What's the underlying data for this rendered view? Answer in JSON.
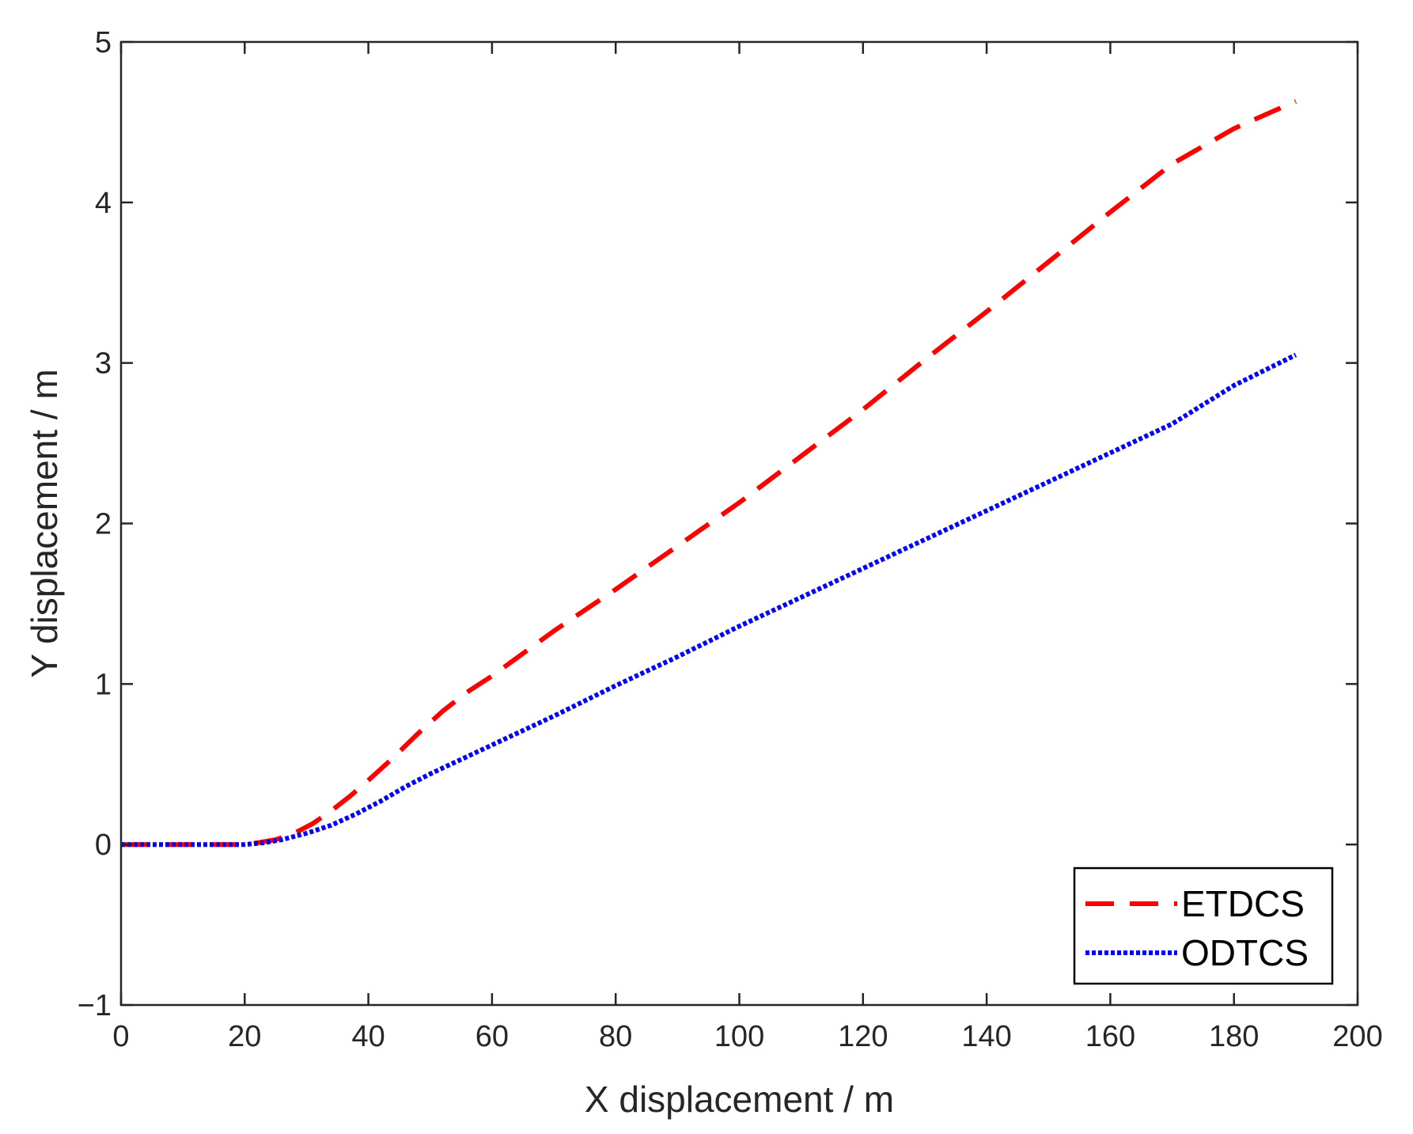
{
  "chart_data": {
    "type": "line",
    "xlabel": "X displacement / m",
    "ylabel": "Y displacement / m",
    "xlim": [
      0,
      200
    ],
    "ylim": [
      -1,
      5
    ],
    "xticks": [
      "0",
      "20",
      "40",
      "60",
      "80",
      "100",
      "120",
      "140",
      "160",
      "180",
      "200"
    ],
    "yticks": [
      "−1",
      "0",
      "1",
      "2",
      "3",
      "4",
      "5"
    ],
    "grid": false,
    "legend_position": "bottom-right",
    "series": [
      {
        "name": "ETDCS",
        "color": "#ff0000",
        "style": "dashed",
        "x": [
          0,
          10,
          20,
          22,
          25,
          28,
          31,
          34,
          37,
          40,
          44,
          48,
          52,
          56,
          60,
          70,
          80,
          90,
          100,
          110,
          120,
          130,
          140,
          150,
          160,
          170,
          180,
          190
        ],
        "y": [
          0,
          0,
          0,
          0.01,
          0.03,
          0.07,
          0.13,
          0.21,
          0.3,
          0.4,
          0.54,
          0.69,
          0.83,
          0.95,
          1.05,
          1.33,
          1.59,
          1.86,
          2.13,
          2.42,
          2.71,
          3.02,
          3.32,
          3.63,
          3.94,
          4.24,
          4.46,
          4.63
        ]
      },
      {
        "name": "ODTCS",
        "color": "#0000ff",
        "style": "dotted",
        "x": [
          0,
          10,
          20,
          23,
          26,
          30,
          34,
          38,
          42,
          46,
          50,
          60,
          70,
          80,
          90,
          100,
          110,
          120,
          130,
          140,
          150,
          160,
          170,
          180,
          190
        ],
        "y": [
          0,
          0,
          0,
          0.01,
          0.03,
          0.07,
          0.12,
          0.19,
          0.27,
          0.36,
          0.44,
          0.62,
          0.8,
          0.99,
          1.17,
          1.36,
          1.54,
          1.72,
          1.9,
          2.08,
          2.26,
          2.44,
          2.62,
          2.86,
          3.05
        ]
      }
    ]
  }
}
